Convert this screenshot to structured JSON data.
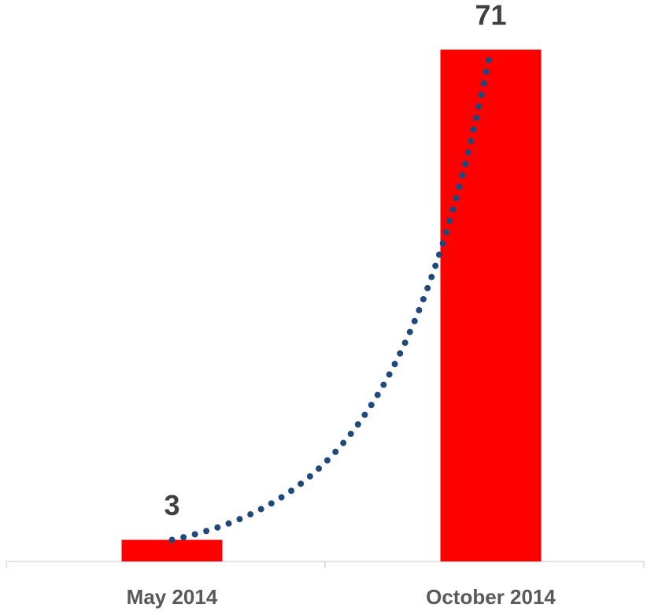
{
  "chart_data": {
    "type": "bar",
    "categories": [
      "May 2014",
      "October 2014"
    ],
    "values": [
      3,
      71
    ],
    "color": "#ff0000",
    "trendline": "exponential",
    "trendline_color": "#1f497d"
  }
}
